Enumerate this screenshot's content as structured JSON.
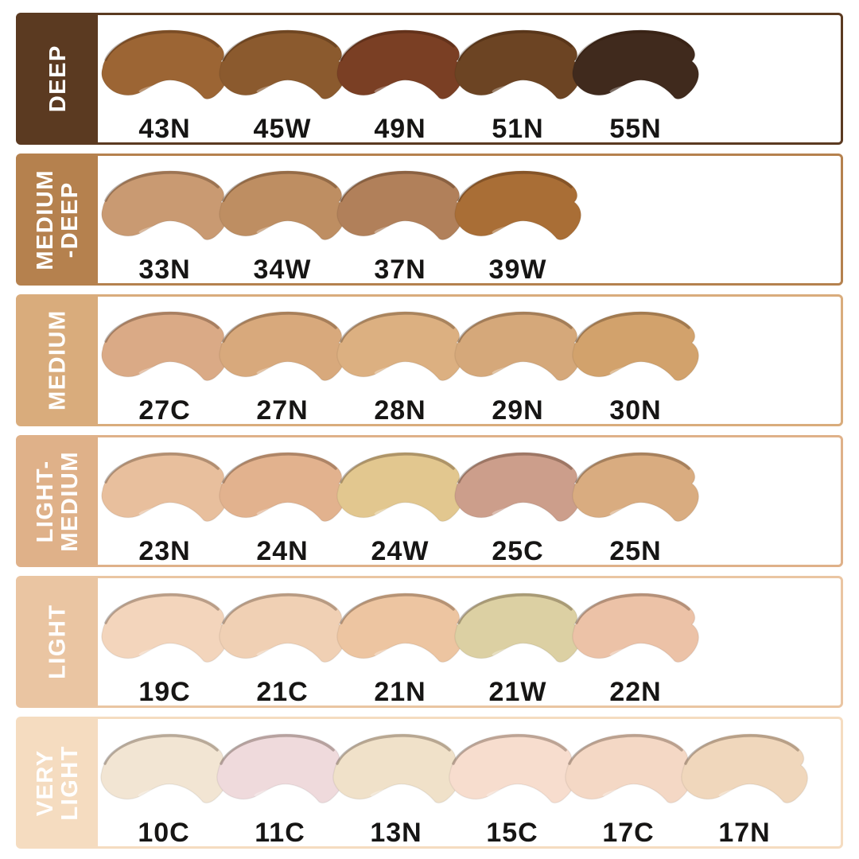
{
  "page": {
    "background": "#FFFFFF"
  },
  "chart_data": {
    "type": "table",
    "description_visible_text_only": "foundation shade swatch chart grouped by depth category",
    "rows": [
      {
        "label": "DEEP",
        "band_color": "#5B3A21",
        "shades": [
          {
            "code": "43N",
            "color": "#9C6534"
          },
          {
            "code": "45W",
            "color": "#8B5A2E"
          },
          {
            "code": "49N",
            "color": "#7A3F24"
          },
          {
            "code": "51N",
            "color": "#6C4423"
          },
          {
            "code": "55N",
            "color": "#402A1D"
          }
        ]
      },
      {
        "label": "MEDIUM\n-DEEP",
        "band_color": "#B5814E",
        "shades": [
          {
            "code": "33N",
            "color": "#C99A72"
          },
          {
            "code": "34W",
            "color": "#BE8E62"
          },
          {
            "code": "37N",
            "color": "#B1805A"
          },
          {
            "code": "39W",
            "color": "#A96E36"
          }
        ]
      },
      {
        "label": "MEDIUM",
        "band_color": "#D9AC7C",
        "shades": [
          {
            "code": "27C",
            "color": "#DAAA86"
          },
          {
            "code": "27N",
            "color": "#D8A97C"
          },
          {
            "code": "28N",
            "color": "#DCB081"
          },
          {
            "code": "29N",
            "color": "#D5A87A"
          },
          {
            "code": "30N",
            "color": "#D2A26C"
          }
        ]
      },
      {
        "label": "LIGHT-\nMEDIUM",
        "band_color": "#DFB189",
        "shades": [
          {
            "code": "23N",
            "color": "#E8BF9D"
          },
          {
            "code": "24N",
            "color": "#E2B28E"
          },
          {
            "code": "24W",
            "color": "#E2C78F"
          },
          {
            "code": "25C",
            "color": "#CC9E8B"
          },
          {
            "code": "25N",
            "color": "#D9AC80"
          }
        ]
      },
      {
        "label": "LIGHT",
        "band_color": "#EAC5A2",
        "shades": [
          {
            "code": "19C",
            "color": "#F3D5BC"
          },
          {
            "code": "21C",
            "color": "#F0D0B4"
          },
          {
            "code": "21N",
            "color": "#EDC5A1"
          },
          {
            "code": "21W",
            "color": "#DCD0A3"
          },
          {
            "code": "22N",
            "color": "#ECC2A7"
          }
        ]
      },
      {
        "label": "VERY\nLIGHT",
        "band_color": "#F5DCC0",
        "shades": [
          {
            "code": "10C",
            "color": "#F2E5D3"
          },
          {
            "code": "11C",
            "color": "#EFDADC"
          },
          {
            "code": "13N",
            "color": "#F0E1C9"
          },
          {
            "code": "15C",
            "color": "#F7DDCE"
          },
          {
            "code": "17C",
            "color": "#F4D8C5"
          },
          {
            "code": "17N",
            "color": "#F0D7BC"
          }
        ]
      }
    ]
  }
}
